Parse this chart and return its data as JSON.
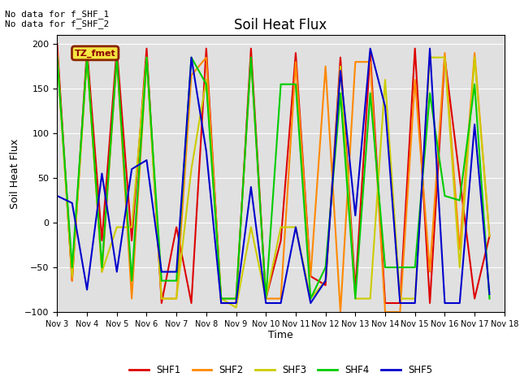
{
  "title": "Soil Heat Flux",
  "ylabel": "Soil Heat Flux",
  "xlabel": "Time",
  "ylim": [
    -100,
    210
  ],
  "yticks": [
    -100,
    -50,
    0,
    50,
    100,
    150,
    200
  ],
  "annotation_text": "No data for f_SHF_1\nNo data for f_SHF_2",
  "legend_label": "TZ_fmet",
  "legend_box_color": "#f5e642",
  "legend_box_edge": "#8b2500",
  "background_color": "#e0e0e0",
  "x_labels": [
    "Nov 3",
    "Nov 4",
    "Nov 5",
    "Nov 6",
    "Nov 7",
    "Nov 8",
    "Nov 9",
    "Nov 10",
    "Nov 11",
    "Nov 12",
    "Nov 13",
    "Nov 14",
    "Nov 15",
    "Nov 16",
    "Nov 17",
    "Nov 18"
  ],
  "series": {
    "SHF1": {
      "color": "#dd0000",
      "x": [
        3,
        3.5,
        4,
        4.5,
        5,
        5.5,
        6,
        6.5,
        7,
        7.5,
        8,
        8.5,
        9,
        9.5,
        10,
        10.5,
        11,
        11.5,
        12,
        12.5,
        13,
        13.5,
        14,
        14.5,
        15,
        15.5,
        16,
        16.5,
        17,
        17.5
      ],
      "y": [
        200,
        -65,
        195,
        -20,
        195,
        -20,
        195,
        -90,
        -5,
        -90,
        195,
        -90,
        -90,
        195,
        -85,
        -20,
        190,
        -60,
        -70,
        185,
        -75,
        190,
        -90,
        -90,
        195,
        -90,
        185,
        50,
        -85,
        -15
      ]
    },
    "SHF2": {
      "color": "#ff8800",
      "x": [
        3,
        3.5,
        4,
        4.5,
        5,
        5.5,
        6,
        6.5,
        7,
        7.5,
        8,
        8.5,
        9,
        9.5,
        10,
        10.5,
        11,
        11.5,
        12,
        12.5,
        13,
        13.5,
        14,
        14.5,
        15,
        15.5,
        16,
        16.5,
        17,
        17.5
      ],
      "y": [
        190,
        -65,
        185,
        -55,
        185,
        -85,
        185,
        -85,
        -85,
        165,
        185,
        -85,
        -85,
        185,
        -85,
        -85,
        180,
        -60,
        175,
        -100,
        180,
        180,
        -100,
        -100,
        160,
        -55,
        190,
        -30,
        190,
        -15
      ]
    },
    "SHF3": {
      "color": "#cccc00",
      "x": [
        3,
        3.5,
        4,
        4.5,
        5,
        5.5,
        6,
        6.5,
        7,
        7.5,
        8,
        8.5,
        9,
        9.5,
        10,
        10.5,
        11,
        11.5,
        12,
        12.5,
        13,
        13.5,
        14,
        14.5,
        15,
        15.5,
        16,
        16.5,
        17,
        17.5
      ],
      "y": [
        185,
        -60,
        185,
        -55,
        -5,
        -5,
        185,
        -85,
        -85,
        60,
        160,
        -85,
        -95,
        -5,
        -85,
        -5,
        -5,
        -85,
        -65,
        175,
        -85,
        -85,
        160,
        -85,
        -85,
        185,
        185,
        -50,
        185,
        -15
      ]
    },
    "SHF4": {
      "color": "#00cc00",
      "x": [
        3,
        3.5,
        4,
        4.5,
        5,
        5.5,
        6,
        6.5,
        7,
        7.5,
        8,
        8.5,
        9,
        9.5,
        10,
        10.5,
        11,
        11.5,
        12,
        12.5,
        13,
        13.5,
        14,
        14.5,
        15,
        15.5,
        16,
        16.5,
        17,
        17.5
      ],
      "y": [
        185,
        -50,
        185,
        -50,
        185,
        -65,
        185,
        -65,
        -65,
        185,
        155,
        -85,
        -85,
        185,
        -85,
        155,
        155,
        -85,
        -50,
        145,
        -85,
        145,
        -50,
        -50,
        -50,
        145,
        30,
        25,
        155,
        -85
      ]
    },
    "SHF5": {
      "color": "#0000cc",
      "x": [
        3,
        3.5,
        4,
        4.5,
        5,
        5.5,
        6,
        6.5,
        7,
        7.5,
        8,
        8.5,
        9,
        9.5,
        10,
        10.5,
        11,
        11.5,
        12,
        12.5,
        13,
        13.5,
        14,
        14.5,
        15,
        15.5,
        16,
        16.5,
        17,
        17.5
      ],
      "y": [
        30,
        22,
        -75,
        55,
        -55,
        60,
        70,
        -55,
        -55,
        185,
        80,
        -90,
        -90,
        40,
        -90,
        -90,
        -5,
        -90,
        -65,
        170,
        8,
        195,
        130,
        -90,
        -90,
        195,
        -90,
        -90,
        110,
        -80
      ]
    }
  }
}
